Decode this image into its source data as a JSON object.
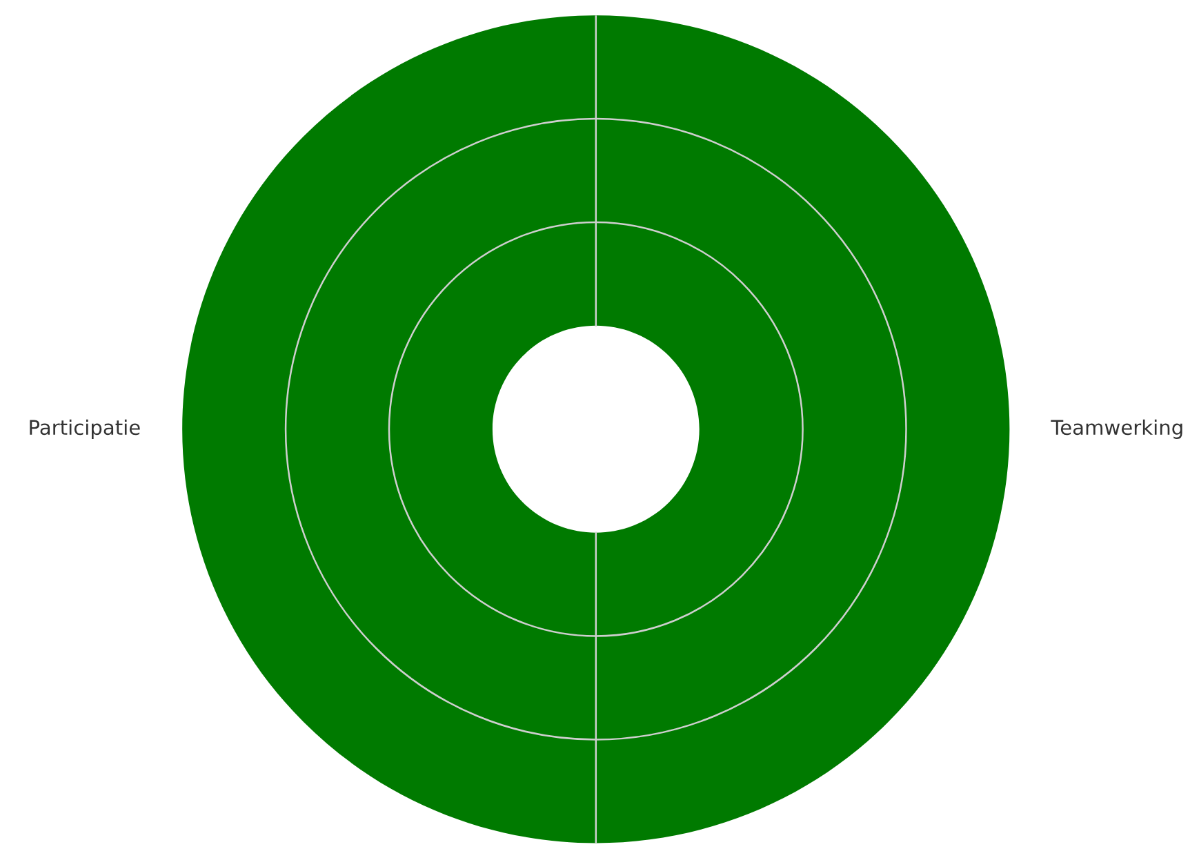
{
  "chart_data": {
    "type": "donut",
    "categories": [
      "Teamwerking",
      "Participatie"
    ],
    "values": [
      50,
      50
    ],
    "colors": [
      "#007a00",
      "#007a00"
    ],
    "grid": true
  }
}
